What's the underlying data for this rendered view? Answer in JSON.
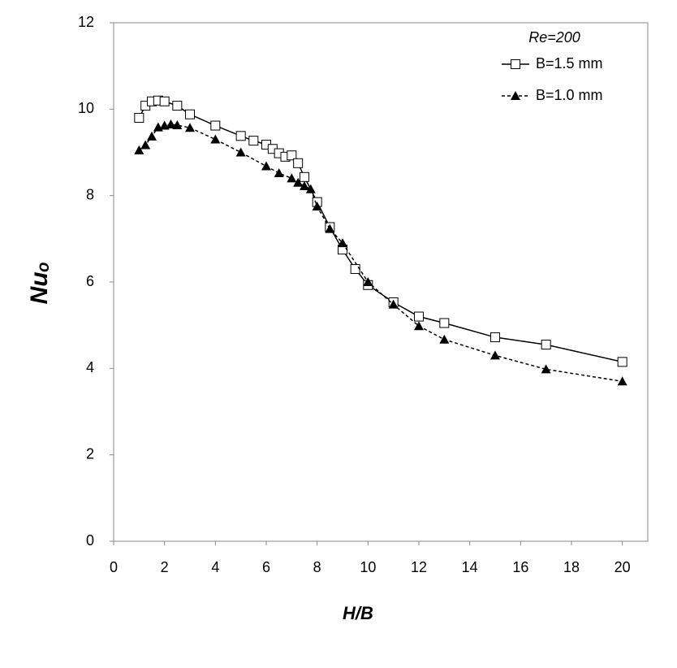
{
  "chart_data": {
    "type": "line",
    "x_label": "H/B",
    "y_label": "Nuₒ",
    "legend_title": "Re=200",
    "legend": "top-right",
    "xlim": [
      0,
      21
    ],
    "xticks": [
      0,
      2,
      4,
      6,
      8,
      10,
      12,
      14,
      16,
      18,
      20
    ],
    "ylim": [
      0,
      12
    ],
    "yticks": [
      0,
      2,
      4,
      6,
      8,
      10,
      12
    ],
    "grid": false,
    "series": [
      {
        "name": "B=1.5 mm",
        "color": "#000000",
        "line": "solid",
        "marker": "square",
        "x": [
          1,
          1.25,
          1.5,
          1.75,
          2,
          2.5,
          3,
          4,
          5,
          5.5,
          6,
          6.25,
          6.5,
          6.75,
          7,
          7.25,
          7.5,
          8,
          8.5,
          9,
          9.5,
          10,
          11,
          12,
          13,
          15,
          17,
          20
        ],
        "values": [
          9.8,
          10.08,
          10.18,
          10.2,
          10.18,
          10.08,
          9.88,
          9.62,
          9.38,
          9.27,
          9.18,
          9.08,
          8.98,
          8.9,
          8.93,
          8.75,
          8.43,
          7.85,
          7.27,
          6.75,
          6.3,
          5.93,
          5.53,
          5.2,
          5.05,
          4.72,
          4.55,
          4.15
        ]
      },
      {
        "name": "B=1.0 mm",
        "color": "#000000",
        "line": "dashed",
        "marker": "triangle",
        "x": [
          1,
          1.25,
          1.5,
          1.75,
          2,
          2.25,
          2.5,
          3,
          4,
          5,
          6,
          6.5,
          7,
          7.25,
          7.5,
          7.75,
          8,
          8.5,
          9,
          10,
          11,
          12,
          13,
          15,
          17,
          20
        ],
        "values": [
          9.05,
          9.17,
          9.37,
          9.58,
          9.62,
          9.65,
          9.63,
          9.57,
          9.3,
          9.0,
          8.68,
          8.52,
          8.4,
          8.3,
          8.22,
          8.15,
          7.75,
          7.23,
          6.9,
          6.0,
          5.48,
          4.98,
          4.67,
          4.3,
          3.98,
          3.7
        ]
      }
    ]
  }
}
